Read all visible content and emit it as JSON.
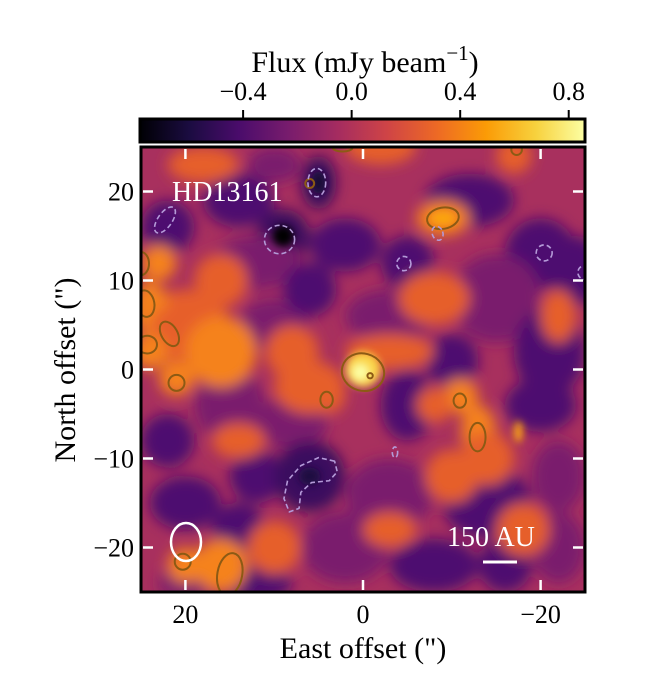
{
  "chart_data": {
    "type": "heatmap",
    "title": "",
    "target_label": "HD13161",
    "xlabel": "East offset (\")",
    "ylabel": "North offset (\")",
    "xlim": [
      25,
      -25
    ],
    "ylim": [
      -25,
      25
    ],
    "xticks": [
      20,
      0,
      -20
    ],
    "xtick_labels": [
      "20",
      "0",
      "−20"
    ],
    "yticks": [
      20,
      10,
      0,
      -10,
      -20
    ],
    "ytick_labels": [
      "20",
      "10",
      "0",
      "−10",
      "−20"
    ],
    "colorbar": {
      "label_main": "Flux (mJy beam",
      "label_sup": "−1",
      "label_end": ")",
      "range": [
        -0.78,
        0.86
      ],
      "ticks": [
        -0.4,
        0.0,
        0.4,
        0.8
      ],
      "tick_labels": [
        "−0.4",
        "0.0",
        "0.4",
        "0.8"
      ],
      "colormap": "inferno",
      "colormap_stops": [
        "#000004",
        "#1b0c41",
        "#4a0c6b",
        "#781c6d",
        "#a52c60",
        "#cf4446",
        "#ed6925",
        "#fb9b06",
        "#f7d13d",
        "#fcffa4"
      ]
    },
    "peak": {
      "x": 0,
      "y": 0
    },
    "scale_bar_label": "150 AU",
    "beam": {
      "x": 20,
      "y": -19.5
    },
    "contours": {
      "positive": "solid",
      "negative": "dashed"
    }
  }
}
